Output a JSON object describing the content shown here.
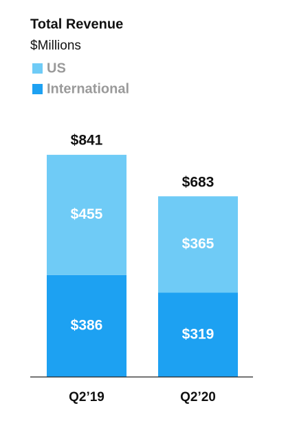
{
  "chart_data": {
    "type": "stacked_bar",
    "title": "Total Revenue",
    "subtitle": "$Millions",
    "categories": [
      "Q2’19",
      "Q2’20"
    ],
    "series": [
      {
        "name": "International",
        "color": "#1da1f2",
        "values": [
          386,
          319
        ],
        "value_labels": [
          "$386",
          "$319"
        ]
      },
      {
        "name": "US",
        "color": "#6fcbf6",
        "values": [
          455,
          365
        ],
        "value_labels": [
          "$455",
          "$365"
        ]
      }
    ],
    "totals": [
      841,
      683
    ],
    "total_labels": [
      "$841",
      "$683"
    ]
  }
}
